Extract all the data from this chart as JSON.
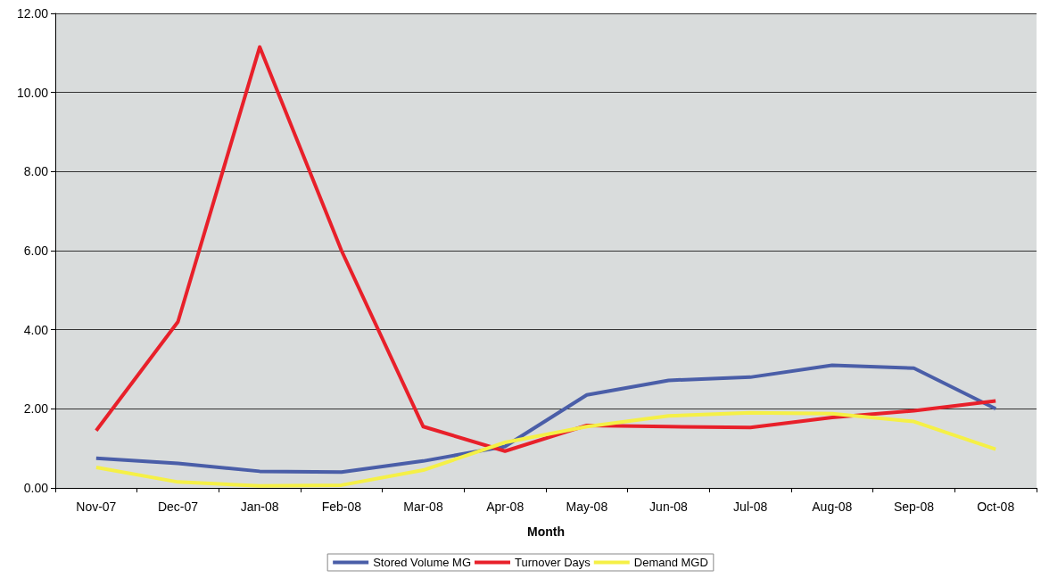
{
  "chart_data": {
    "type": "line",
    "xlabel": "Month",
    "categories": [
      "Nov-07",
      "Dec-07",
      "Jan-08",
      "Feb-08",
      "Mar-08",
      "Apr-08",
      "May-08",
      "Jun-08",
      "Jul-08",
      "Aug-08",
      "Sep-08",
      "Oct-08"
    ],
    "series": [
      {
        "name": "Stored Volume MG",
        "color": "#4a5ea8",
        "values": [
          0.75,
          0.62,
          0.42,
          0.4,
          0.68,
          1.05,
          2.35,
          2.72,
          2.8,
          3.1,
          3.03,
          2.0
        ]
      },
      {
        "name": "Turnover Days",
        "color": "#e8202a",
        "values": [
          1.45,
          4.2,
          11.15,
          6.0,
          1.55,
          0.93,
          1.58,
          1.55,
          1.53,
          1.78,
          1.95,
          2.2
        ]
      },
      {
        "name": "Demand MGD",
        "color": "#f5f046",
        "values": [
          0.52,
          0.15,
          0.05,
          0.07,
          0.45,
          1.15,
          1.55,
          1.82,
          1.9,
          1.88,
          1.68,
          0.98
        ]
      }
    ],
    "ylim": [
      0,
      12
    ],
    "yticks": [
      {
        "value": 0,
        "label": "0.00"
      },
      {
        "value": 2,
        "label": "2.00"
      },
      {
        "value": 4,
        "label": "4.00"
      },
      {
        "value": 6,
        "label": "6.00"
      },
      {
        "value": 8,
        "label": "8.00"
      },
      {
        "value": 10,
        "label": "10.00"
      },
      {
        "value": 12,
        "label": "12.00"
      }
    ],
    "grid": "y",
    "legend": "bottom",
    "marker": "none",
    "line_style": "solid"
  }
}
